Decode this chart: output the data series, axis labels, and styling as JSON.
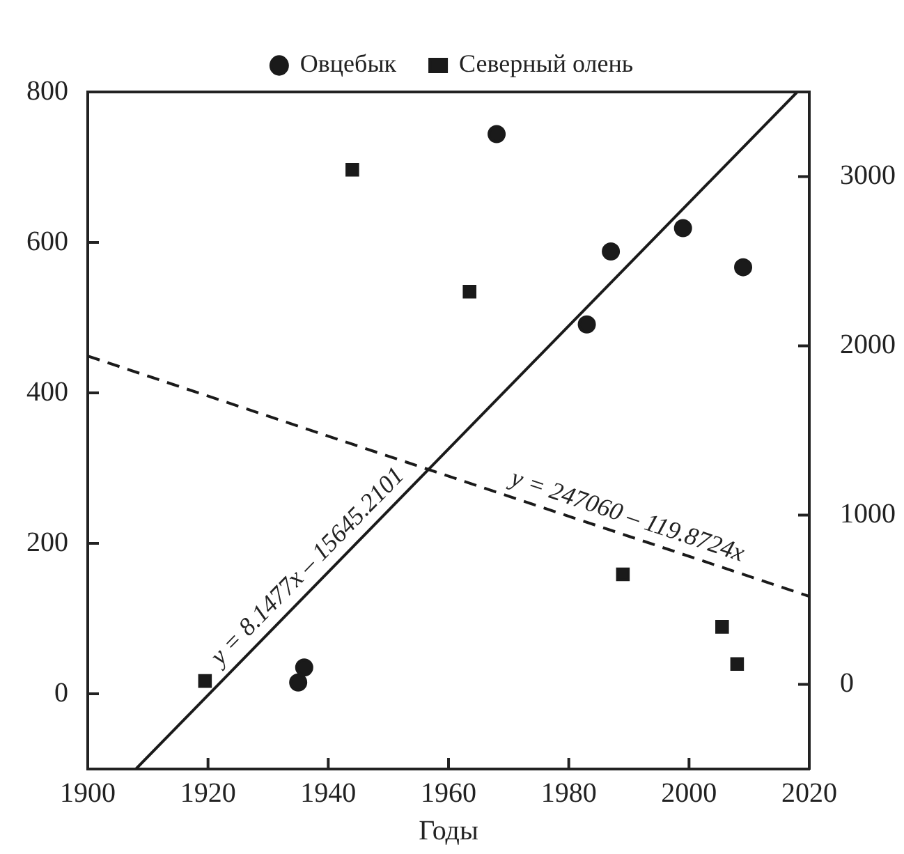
{
  "chart_data": {
    "type": "scatter",
    "xlabel": "Годы",
    "legend": "top",
    "grid": false,
    "xlim": [
      1900,
      2020
    ],
    "xticks": [
      1900,
      1920,
      1940,
      1960,
      1980,
      2000,
      2020
    ],
    "ylim": [
      -100,
      800
    ],
    "yticks": [
      0,
      200,
      400,
      600,
      800
    ],
    "y2lim": [
      -500,
      3500
    ],
    "y2ticks": [
      0,
      1000,
      2000,
      3000
    ],
    "series": [
      {
        "name": "Овцебык",
        "color": "#1a1a1a",
        "marker": "circle",
        "x": [
          1935,
          1936,
          1968,
          1983,
          1987,
          1999,
          2009
        ],
        "values": [
          15,
          35,
          744,
          491,
          588,
          619,
          567
        ]
      },
      {
        "name": "Северный олень",
        "color": "#1a1a1a",
        "marker": "square",
        "axis": "y2",
        "x": [
          1919.5,
          1944,
          1963.5,
          1989,
          2005.5,
          2008
        ],
        "values": [
          20,
          3040,
          2320,
          650,
          340,
          120
        ]
      },
      {
        "type": "line",
        "color": "#1a1a1a",
        "line_style": "solid",
        "marker": "none",
        "x": [
          1908,
          2018
        ],
        "values": [
          -100,
          800
        ]
      },
      {
        "type": "line",
        "color": "#1a1a1a",
        "line_style": "dashed",
        "marker": "none",
        "axis": "y2",
        "x": [
          1900,
          2020
        ],
        "values": [
          1940,
          520
        ]
      }
    ],
    "annotations": [
      "y = 8.1477x – 15645.2101",
      "y = 247060 – 119.8724x"
    ]
  }
}
